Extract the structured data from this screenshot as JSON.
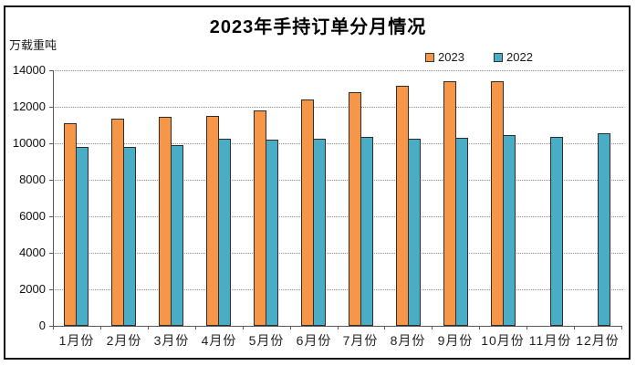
{
  "title": "2023年手持订单分月情况",
  "y_axis_unit_label": "万载重吨",
  "legend": {
    "items": [
      {
        "label": "2023",
        "color": "#F79646"
      },
      {
        "label": "2022",
        "color": "#4BACC6"
      }
    ]
  },
  "colors": {
    "bar_2023": "#F79646",
    "bar_2022": "#4BACC6",
    "bar_border": "#2d2d2d",
    "gridline": "#8a8a8a",
    "axis": "#595959",
    "frame_border": "#111111",
    "background": "#ffffff"
  },
  "chart_data": {
    "type": "bar",
    "title": "2023年手持订单分月情况",
    "ylabel": "万载重吨",
    "xlabel": "",
    "categories": [
      "1月份",
      "2月份",
      "3月份",
      "4月份",
      "5月份",
      "6月份",
      "7月份",
      "8月份",
      "9月份",
      "10月份",
      "11月份",
      "12月份"
    ],
    "series": [
      {
        "name": "2023",
        "color": "#F79646",
        "values": [
          11100,
          11350,
          11450,
          11500,
          11800,
          12400,
          12800,
          13150,
          13400,
          13380,
          null,
          null
        ]
      },
      {
        "name": "2022",
        "color": "#4BACC6",
        "values": [
          9800,
          9780,
          9900,
          10250,
          10200,
          10270,
          10360,
          10230,
          10280,
          10440,
          10360,
          10560
        ]
      }
    ],
    "ylim": [
      0,
      14000
    ],
    "yticks": [
      0,
      2000,
      4000,
      6000,
      8000,
      10000,
      12000,
      14000
    ],
    "grid": "horizontal dotted gridlines at each y tick",
    "legend_position": "inside top, right of center"
  }
}
